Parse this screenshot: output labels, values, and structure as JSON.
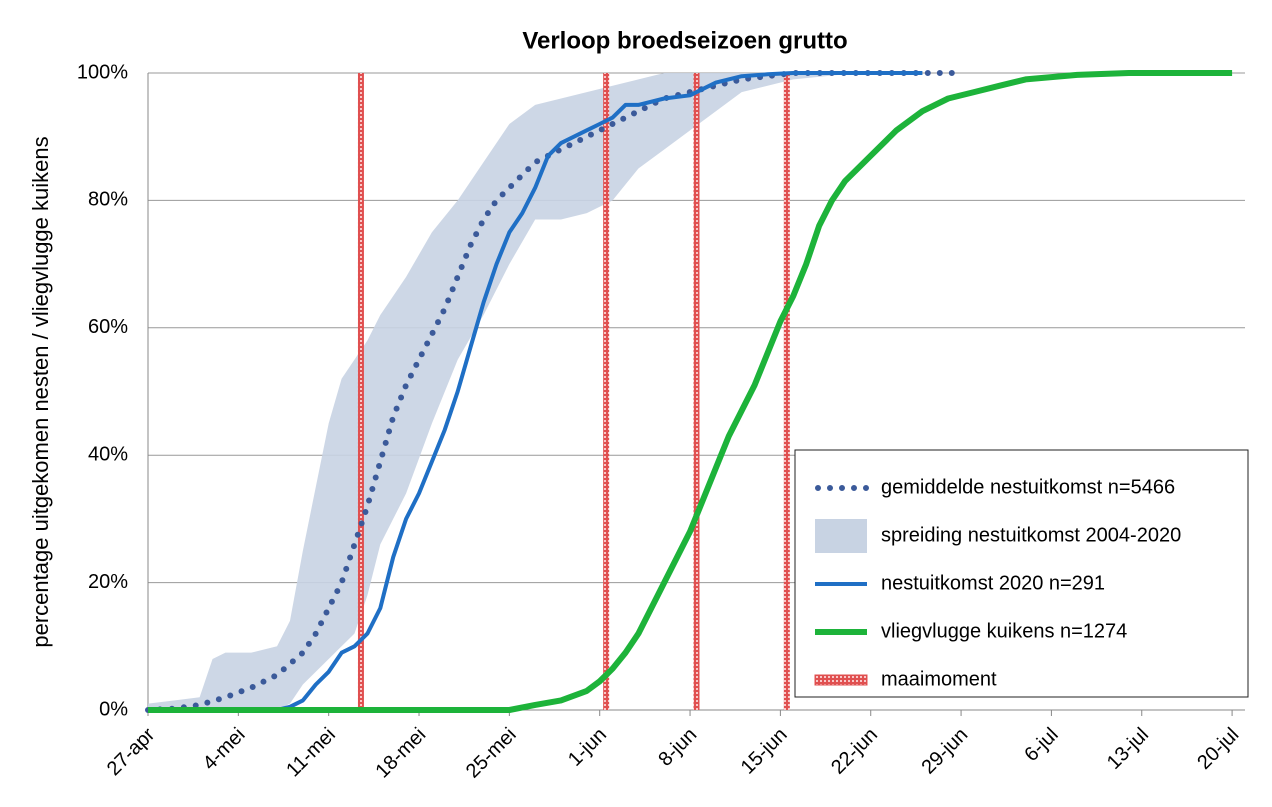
{
  "chart_data": {
    "type": "line",
    "title": "Verloop broedseizoen grutto",
    "y_label": "percentage uitgekomen nesten / vliegvlugge kuikens",
    "xlim": [
      0,
      85
    ],
    "xticks": [
      {
        "value": 0,
        "label": "27-apr"
      },
      {
        "value": 7,
        "label": "4-mei"
      },
      {
        "value": 14,
        "label": "11-mei"
      },
      {
        "value": 21,
        "label": "18-mei"
      },
      {
        "value": 28,
        "label": "25-mei"
      },
      {
        "value": 35,
        "label": "1-jun"
      },
      {
        "value": 42,
        "label": "8-jun"
      },
      {
        "value": 49,
        "label": "15-jun"
      },
      {
        "value": 56,
        "label": "22-jun"
      },
      {
        "value": 63,
        "label": "29-jun"
      },
      {
        "value": 70,
        "label": "6-jul"
      },
      {
        "value": 77,
        "label": "13-jul"
      },
      {
        "value": 84,
        "label": "20-jul"
      }
    ],
    "ylim": [
      0,
      100
    ],
    "yticks": [
      {
        "value": 0,
        "label": "0%"
      },
      {
        "value": 20,
        "label": "20%"
      },
      {
        "value": 40,
        "label": "40%"
      },
      {
        "value": 60,
        "label": "60%"
      },
      {
        "value": 80,
        "label": "80%"
      },
      {
        "value": 100,
        "label": "100%"
      }
    ],
    "grid": true,
    "legend": "lower right",
    "series": [
      {
        "name": "gemiddelde nestuitkomst n=5466",
        "style": "dotted",
        "color": "#3b5a9a",
        "x": [
          0,
          2,
          4,
          6,
          8,
          10,
          12,
          13,
          14,
          15,
          16,
          17,
          18,
          19,
          20,
          21,
          22,
          23,
          24,
          25,
          26,
          27,
          28,
          30,
          32,
          34,
          36,
          38,
          40,
          42,
          44,
          46,
          48,
          50,
          63
        ],
        "values": [
          0,
          0.2,
          0.8,
          2,
          3.5,
          5.5,
          9,
          12,
          16,
          20,
          26,
          32,
          39,
          46,
          51,
          55,
          59,
          63,
          68,
          73,
          77,
          80,
          82,
          86,
          88,
          90,
          92,
          94,
          96,
          97,
          98,
          99,
          99.5,
          100,
          100
        ]
      },
      {
        "name": "spreiding nestuitkomst 2004-2020",
        "style": "band",
        "color": "#c8d3e3",
        "x": [
          0,
          2,
          4,
          5,
          6,
          8,
          10,
          11,
          12,
          13,
          14,
          15,
          16,
          17,
          18,
          19,
          20,
          22,
          24,
          26,
          28,
          30,
          32,
          34,
          36,
          38,
          40,
          42,
          44,
          46,
          50,
          55,
          84
        ],
        "upper": [
          1,
          1.5,
          2,
          8,
          9,
          9,
          10,
          14,
          25,
          35,
          45,
          52,
          55,
          58,
          62,
          65,
          68,
          75,
          80,
          86,
          92,
          95,
          96,
          97,
          98,
          99,
          100,
          100,
          100,
          100,
          100,
          100,
          100
        ],
        "lower": [
          0,
          0,
          0,
          0,
          0,
          0,
          0,
          1,
          4,
          6,
          8,
          10,
          12,
          18,
          26,
          30,
          34,
          45,
          55,
          62,
          70,
          77,
          77,
          78,
          80,
          85,
          88,
          91,
          94,
          97,
          99,
          100,
          100
        ]
      },
      {
        "name": "nestuitkomst 2020 n=291",
        "style": "solid",
        "color": "#1f6fc5",
        "x": [
          0,
          10,
          11,
          12,
          13,
          14,
          15,
          16,
          17,
          18,
          19,
          20,
          21,
          22,
          23,
          24,
          25,
          26,
          27,
          28,
          29,
          30,
          31,
          32,
          33,
          34,
          35,
          36,
          37,
          38,
          40,
          42,
          44,
          46,
          48,
          50,
          60
        ],
        "values": [
          0,
          0,
          0.5,
          1.5,
          4,
          6,
          9,
          10,
          12,
          16,
          24,
          30,
          34,
          39,
          44,
          50,
          57,
          64,
          70,
          75,
          78,
          82,
          87,
          89,
          90,
          91,
          92,
          93,
          95,
          95,
          96,
          96.5,
          98.5,
          99.5,
          99.8,
          100,
          100
        ]
      },
      {
        "name": "vliegvlugge kuikens n=1274",
        "style": "solid-thick",
        "color": "#1db33a",
        "x": [
          0,
          28,
          30,
          32,
          34,
          35,
          36,
          37,
          38,
          39,
          40,
          41,
          42,
          43,
          44,
          45,
          46,
          47,
          48,
          49,
          50,
          51,
          52,
          53,
          54,
          56,
          58,
          60,
          62,
          64,
          66,
          68,
          72,
          76,
          84
        ],
        "values": [
          0,
          0,
          0.8,
          1.5,
          3,
          4.5,
          6.5,
          9,
          12,
          16,
          20,
          24,
          28,
          33,
          38,
          43,
          47,
          51,
          56,
          61,
          65,
          70,
          76,
          80,
          83,
          87,
          91,
          94,
          96,
          97,
          98,
          99,
          99.7,
          100,
          100
        ]
      },
      {
        "name": "maaimoment",
        "style": "vline",
        "color": "#d43030",
        "x": [
          16.5,
          35.5,
          42.5,
          49.5
        ]
      }
    ]
  }
}
